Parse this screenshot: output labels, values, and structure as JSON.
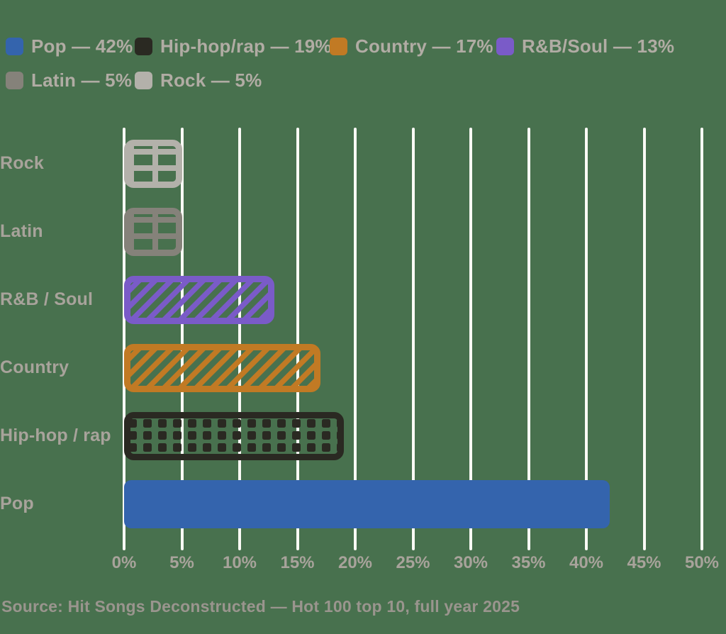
{
  "colors": {
    "background": "#48714E",
    "gridline": "#FAFAF5",
    "legend_text": "#B1ACA4",
    "axis_text": "#A8A39B",
    "source_text": "#9A958E"
  },
  "legend": {
    "items": [
      {
        "label": "Pop — 42%",
        "color": "#3464AD"
      },
      {
        "label": "Hip-hop/rap — 19%",
        "color": "#2A2922"
      },
      {
        "label": "Country — 17%",
        "color": "#C17A24"
      },
      {
        "label": "R&B/Soul — 13%",
        "color": "#7A5BC8"
      },
      {
        "label": "Latin — 5%",
        "color": "#85827A"
      },
      {
        "label": "Rock — 5%",
        "color": "#B3B1AA"
      }
    ]
  },
  "chart_data": {
    "type": "bar",
    "orientation": "horizontal",
    "categories": [
      "Rock",
      "Latin",
      "R&B / Soul",
      "Country",
      "Hip-hop / rap",
      "Pop"
    ],
    "values": [
      5,
      5,
      13,
      17,
      19,
      42
    ],
    "unit": "%",
    "patterns": [
      "grid",
      "grid",
      "diagonal",
      "diagonal",
      "dots",
      "solid"
    ],
    "bar_colors": [
      "#B3B1AA",
      "#85827A",
      "#7A5BC8",
      "#C17A24",
      "#2A2922",
      "#3464AD"
    ],
    "xlim": [
      0,
      50
    ],
    "xticks": [
      "0%",
      "5%",
      "10%",
      "15%",
      "20%",
      "25%",
      "30%",
      "35%",
      "40%",
      "45%",
      "50%"
    ],
    "grid": true,
    "legend_position": "top",
    "title": ""
  },
  "source": "Source: Hit Songs Deconstructed — Hot 100 top 10, full year 2025"
}
